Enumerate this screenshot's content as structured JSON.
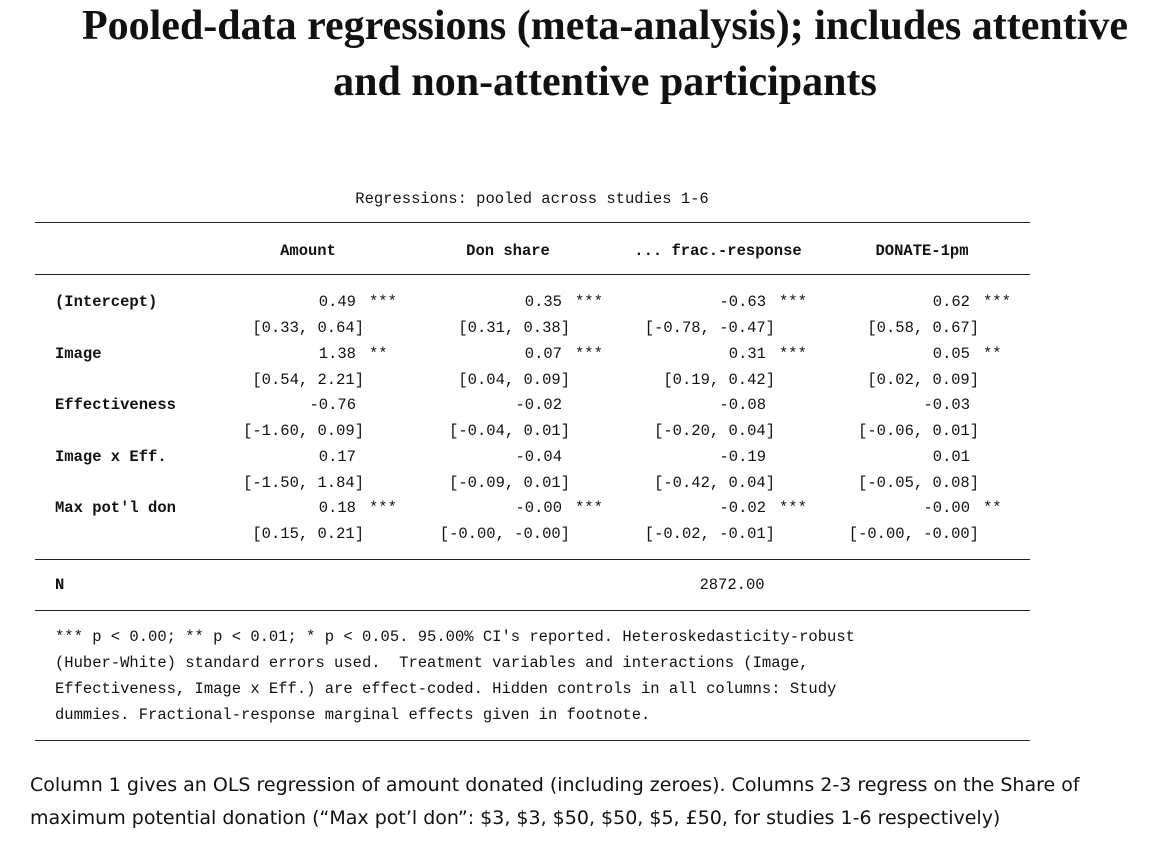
{
  "title": [
    "Pooled-data regressions (meta-analysis); includes attentive",
    "and non-attentive participants"
  ],
  "table": {
    "caption": "Regressions: pooled across studies 1-6",
    "columns": [
      "Amount",
      "Don share",
      "... frac.-response",
      "DONATE-1pm"
    ],
    "rows": [
      {
        "label": "(Intercept)",
        "cells": [
          {
            "estimate": "0.49",
            "stars": "***",
            "ci": "[0.33, 0.64]"
          },
          {
            "estimate": "0.35",
            "stars": "***",
            "ci": "[0.31, 0.38]"
          },
          {
            "estimate": "-0.63",
            "stars": "***",
            "ci": "[-0.78, -0.47]"
          },
          {
            "estimate": "0.62",
            "stars": "***",
            "ci": "[0.58, 0.67]"
          }
        ]
      },
      {
        "label": "Image",
        "cells": [
          {
            "estimate": "1.38",
            "stars": "**",
            "ci": "[0.54, 2.21]"
          },
          {
            "estimate": "0.07",
            "stars": "***",
            "ci": "[0.04, 0.09]"
          },
          {
            "estimate": "0.31",
            "stars": "***",
            "ci": "[0.19, 0.42]"
          },
          {
            "estimate": "0.05",
            "stars": "**",
            "ci": "[0.02, 0.09]"
          }
        ]
      },
      {
        "label": "Effectiveness",
        "cells": [
          {
            "estimate": "-0.76",
            "ci": "[-1.60, 0.09]"
          },
          {
            "estimate": "-0.02",
            "ci": "[-0.04, 0.01]"
          },
          {
            "estimate": "-0.08",
            "ci": "[-0.20, 0.04]"
          },
          {
            "estimate": "-0.03",
            "ci": "[-0.06, 0.01]"
          }
        ]
      },
      {
        "label": "Image x Eff.",
        "cells": [
          {
            "estimate": "0.17",
            "ci": "[-1.50, 1.84]"
          },
          {
            "estimate": "-0.04",
            "ci": "[-0.09, 0.01]"
          },
          {
            "estimate": "-0.19",
            "ci": "[-0.42, 0.04]"
          },
          {
            "estimate": "0.01",
            "ci": "[-0.05, 0.08]"
          }
        ]
      },
      {
        "label": "Max pot'l don",
        "cells": [
          {
            "estimate": "0.18",
            "stars": "***",
            "ci": "[0.15, 0.21]"
          },
          {
            "estimate": "-0.00",
            "stars": "***",
            "ci": "[-0.00, -0.00]"
          },
          {
            "estimate": "-0.02",
            "stars": "***",
            "ci": "[-0.02, -0.01]"
          },
          {
            "estimate": "-0.00",
            "stars": "**",
            "ci": "[-0.00, -0.00]"
          }
        ]
      }
    ],
    "n_row": {
      "label": "N",
      "value": "2872.00"
    },
    "notes": [
      "*** p < 0.00; ** p < 0.01; * p < 0.05. 95.00% CI's reported. Heteroskedasticity-robust",
      "(Huber-White) standard errors used.  Treatment variables and interactions (Image,",
      "Effectiveness, Image x Eff.) are effect-coded. Hidden controls in all columns: Study",
      "dummies. Fractional-response marginal effects given in footnote."
    ]
  },
  "footer": [
    "Column 1 gives an OLS regression of amount donated (including zeroes). Columns 2-3 regress on the Share of",
    "maximum potential donation (“Max pot’l don”: $3, $3, $50, $50, $5, £50, for studies 1-6 respectively)"
  ]
}
